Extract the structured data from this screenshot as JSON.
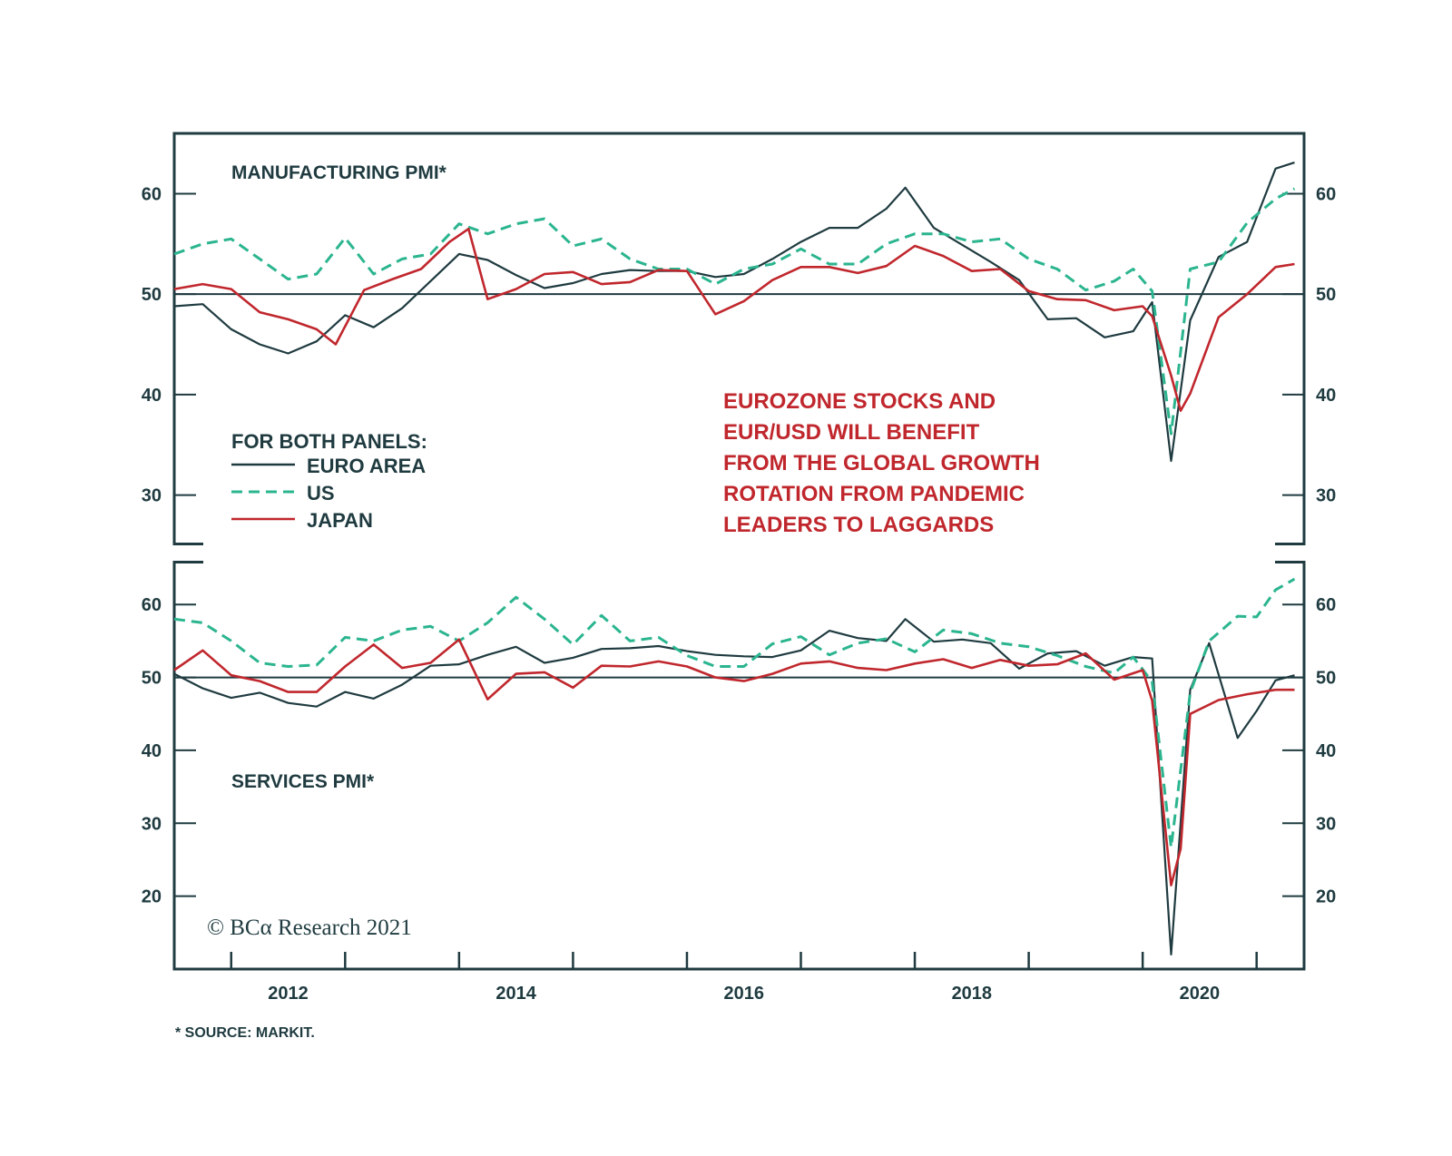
{
  "colors": {
    "euro": "#1f3b40",
    "us": "#2bb58f",
    "japan": "#c0272d",
    "frame": "#1f3b40"
  },
  "legend_title": "FOR BOTH PANELS:",
  "annotation": [
    "EUROZONE STOCKS AND",
    "EUR/USD WILL BENEFIT",
    "FROM THE GLOBAL GROWTH",
    "ROTATION FROM PANDEMIC",
    "LEADERS TO LAGGARDS"
  ],
  "copyright": "© BCα Research 2021",
  "footnote": "* SOURCE: MARKIT.",
  "chart_data": [
    {
      "type": "line",
      "title": "MANUFACTURING PMI*",
      "x_labels": [
        "2012",
        "2014",
        "2016",
        "2018",
        "2020"
      ],
      "x_range": [
        "2011-07",
        "2021-06"
      ],
      "ylim": [
        25,
        66
      ],
      "yticks": [
        30,
        40,
        50,
        60
      ],
      "reference_line": 50,
      "legend": "left, below title",
      "series": [
        {
          "name": "EURO AREA",
          "style": "solid",
          "x": [
            "2011-07",
            "2011-10",
            "2012-01",
            "2012-04",
            "2012-07",
            "2012-10",
            "2013-01",
            "2013-04",
            "2013-07",
            "2013-10",
            "2014-01",
            "2014-04",
            "2014-07",
            "2014-10",
            "2015-01",
            "2015-04",
            "2015-07",
            "2015-10",
            "2016-01",
            "2016-04",
            "2016-07",
            "2016-10",
            "2017-01",
            "2017-04",
            "2017-07",
            "2017-10",
            "2017-12",
            "2018-03",
            "2018-06",
            "2018-09",
            "2018-12",
            "2019-03",
            "2019-06",
            "2019-09",
            "2019-12",
            "2020-02",
            "2020-04",
            "2020-06",
            "2020-09",
            "2020-12",
            "2021-03",
            "2021-05"
          ],
          "y": [
            48.8,
            49.0,
            46.5,
            45.0,
            44.1,
            45.3,
            47.9,
            46.7,
            48.6,
            51.3,
            54.0,
            53.4,
            51.9,
            50.6,
            51.1,
            52.0,
            52.4,
            52.3,
            52.3,
            51.7,
            52.0,
            53.5,
            55.2,
            56.6,
            56.6,
            58.5,
            60.6,
            56.6,
            54.9,
            53.2,
            51.4,
            47.5,
            47.6,
            45.7,
            46.3,
            49.2,
            33.4,
            47.4,
            53.7,
            55.2,
            62.5,
            63.1
          ]
        },
        {
          "name": "US",
          "style": "dashed",
          "x": [
            "2011-07",
            "2011-10",
            "2012-01",
            "2012-04",
            "2012-07",
            "2012-10",
            "2013-01",
            "2013-04",
            "2013-07",
            "2013-10",
            "2014-01",
            "2014-04",
            "2014-07",
            "2014-10",
            "2015-01",
            "2015-04",
            "2015-07",
            "2015-10",
            "2016-01",
            "2016-04",
            "2016-07",
            "2016-10",
            "2017-01",
            "2017-04",
            "2017-07",
            "2017-10",
            "2018-01",
            "2018-04",
            "2018-07",
            "2018-10",
            "2019-01",
            "2019-04",
            "2019-07",
            "2019-10",
            "2019-12",
            "2020-02",
            "2020-04",
            "2020-06",
            "2020-09",
            "2020-12",
            "2021-03",
            "2021-05"
          ],
          "y": [
            54.0,
            55.0,
            55.5,
            53.5,
            51.5,
            52.0,
            55.6,
            52.0,
            53.5,
            54.0,
            57.0,
            56.0,
            57.0,
            57.5,
            54.8,
            55.5,
            53.5,
            52.5,
            52.5,
            51.0,
            52.5,
            53.0,
            54.5,
            53.0,
            53.0,
            55.0,
            56.0,
            56.0,
            55.2,
            55.5,
            53.5,
            52.5,
            50.4,
            51.3,
            52.5,
            50.3,
            36.1,
            52.5,
            53.2,
            57.1,
            59.5,
            60.5
          ]
        },
        {
          "name": "JAPAN",
          "style": "solid",
          "x": [
            "2011-07",
            "2011-10",
            "2012-01",
            "2012-04",
            "2012-07",
            "2012-10",
            "2012-12",
            "2013-03",
            "2013-06",
            "2013-09",
            "2013-12",
            "2014-02",
            "2014-04",
            "2014-07",
            "2014-10",
            "2015-01",
            "2015-04",
            "2015-07",
            "2015-10",
            "2016-01",
            "2016-04",
            "2016-07",
            "2016-10",
            "2017-01",
            "2017-04",
            "2017-07",
            "2017-10",
            "2018-01",
            "2018-04",
            "2018-07",
            "2018-10",
            "2019-01",
            "2019-04",
            "2019-07",
            "2019-10",
            "2020-01",
            "2020-02",
            "2020-04",
            "2020-05",
            "2020-06",
            "2020-09",
            "2020-12",
            "2021-03",
            "2021-05"
          ],
          "y": [
            50.5,
            51.0,
            50.5,
            48.2,
            47.5,
            46.5,
            45.0,
            50.4,
            51.5,
            52.5,
            55.2,
            56.5,
            49.5,
            50.5,
            52.0,
            52.2,
            51.0,
            51.2,
            52.4,
            52.3,
            48.0,
            49.3,
            51.4,
            52.7,
            52.7,
            52.1,
            52.8,
            54.8,
            53.8,
            52.3,
            52.5,
            50.3,
            49.5,
            49.4,
            48.4,
            48.8,
            47.8,
            41.9,
            38.4,
            40.1,
            47.7,
            50.0,
            52.7,
            53.0
          ]
        }
      ]
    },
    {
      "type": "line",
      "title": "SERVICES PMI*",
      "x_labels": [
        "2012",
        "2014",
        "2016",
        "2018",
        "2020"
      ],
      "x_range": [
        "2011-07",
        "2021-06"
      ],
      "ylim": [
        10,
        66
      ],
      "yticks": [
        20,
        30,
        40,
        50,
        60
      ],
      "reference_line": 50,
      "series": [
        {
          "name": "EURO AREA",
          "style": "solid",
          "x": [
            "2011-07",
            "2011-10",
            "2012-01",
            "2012-04",
            "2012-07",
            "2012-10",
            "2013-01",
            "2013-04",
            "2013-07",
            "2013-10",
            "2014-01",
            "2014-04",
            "2014-07",
            "2014-10",
            "2015-01",
            "2015-04",
            "2015-07",
            "2015-10",
            "2016-01",
            "2016-04",
            "2016-07",
            "2016-10",
            "2017-01",
            "2017-04",
            "2017-07",
            "2017-10",
            "2017-12",
            "2018-03",
            "2018-06",
            "2018-09",
            "2018-12",
            "2019-03",
            "2019-06",
            "2019-09",
            "2019-12",
            "2020-02",
            "2020-04",
            "2020-06",
            "2020-08",
            "2020-11",
            "2021-01",
            "2021-03",
            "2021-05"
          ],
          "y": [
            50.5,
            48.5,
            47.2,
            47.9,
            46.5,
            46.0,
            48.0,
            47.1,
            49.0,
            51.6,
            51.8,
            53.1,
            54.2,
            52.0,
            52.7,
            53.9,
            54.0,
            54.3,
            53.6,
            53.1,
            52.9,
            52.8,
            53.7,
            56.4,
            55.4,
            55.0,
            58.0,
            54.9,
            55.2,
            54.7,
            51.2,
            53.3,
            53.6,
            51.6,
            52.8,
            52.6,
            12.0,
            48.3,
            54.7,
            41.7,
            45.4,
            49.6,
            50.3
          ]
        },
        {
          "name": "US",
          "style": "dashed",
          "x": [
            "2011-07",
            "2011-10",
            "2012-01",
            "2012-04",
            "2012-07",
            "2012-10",
            "2013-01",
            "2013-04",
            "2013-07",
            "2013-10",
            "2014-01",
            "2014-04",
            "2014-07",
            "2014-10",
            "2015-01",
            "2015-04",
            "2015-07",
            "2015-10",
            "2016-01",
            "2016-04",
            "2016-07",
            "2016-10",
            "2017-01",
            "2017-04",
            "2017-07",
            "2017-10",
            "2018-01",
            "2018-04",
            "2018-07",
            "2018-10",
            "2019-01",
            "2019-04",
            "2019-07",
            "2019-10",
            "2019-12",
            "2020-02",
            "2020-04",
            "2020-06",
            "2020-08",
            "2020-11",
            "2021-01",
            "2021-03",
            "2021-05"
          ],
          "y": [
            58.0,
            57.5,
            55.0,
            52.0,
            51.5,
            51.7,
            55.5,
            55.0,
            56.5,
            57.0,
            55.0,
            57.5,
            61.0,
            58.0,
            54.5,
            58.5,
            55.0,
            55.5,
            53.0,
            51.5,
            51.5,
            54.6,
            55.6,
            53.1,
            54.7,
            55.3,
            53.5,
            56.5,
            56.0,
            54.7,
            54.2,
            53.0,
            51.5,
            50.6,
            52.8,
            49.4,
            26.7,
            47.9,
            55.0,
            58.4,
            58.3,
            62.0,
            63.5
          ]
        },
        {
          "name": "JAPAN",
          "style": "solid",
          "x": [
            "2011-07",
            "2011-10",
            "2012-01",
            "2012-04",
            "2012-07",
            "2012-10",
            "2013-01",
            "2013-04",
            "2013-07",
            "2013-10",
            "2014-01",
            "2014-04",
            "2014-07",
            "2014-10",
            "2015-01",
            "2015-04",
            "2015-07",
            "2015-10",
            "2016-01",
            "2016-04",
            "2016-07",
            "2016-10",
            "2017-01",
            "2017-04",
            "2017-07",
            "2017-10",
            "2018-01",
            "2018-04",
            "2018-07",
            "2018-10",
            "2019-01",
            "2019-04",
            "2019-07",
            "2019-10",
            "2020-01",
            "2020-02",
            "2020-04",
            "2020-05",
            "2020-06",
            "2020-09",
            "2020-12",
            "2021-03",
            "2021-05"
          ],
          "y": [
            51.0,
            53.7,
            50.3,
            49.5,
            48.0,
            48.0,
            51.5,
            54.5,
            51.3,
            52.0,
            55.2,
            47.0,
            50.5,
            50.7,
            48.6,
            51.6,
            51.5,
            52.2,
            51.5,
            50.0,
            49.5,
            50.5,
            51.9,
            52.2,
            51.3,
            51.0,
            51.9,
            52.5,
            51.3,
            52.4,
            51.6,
            51.8,
            53.3,
            49.7,
            51.0,
            46.8,
            21.5,
            26.5,
            45.0,
            46.9,
            47.7,
            48.3,
            48.3
          ]
        }
      ]
    }
  ]
}
